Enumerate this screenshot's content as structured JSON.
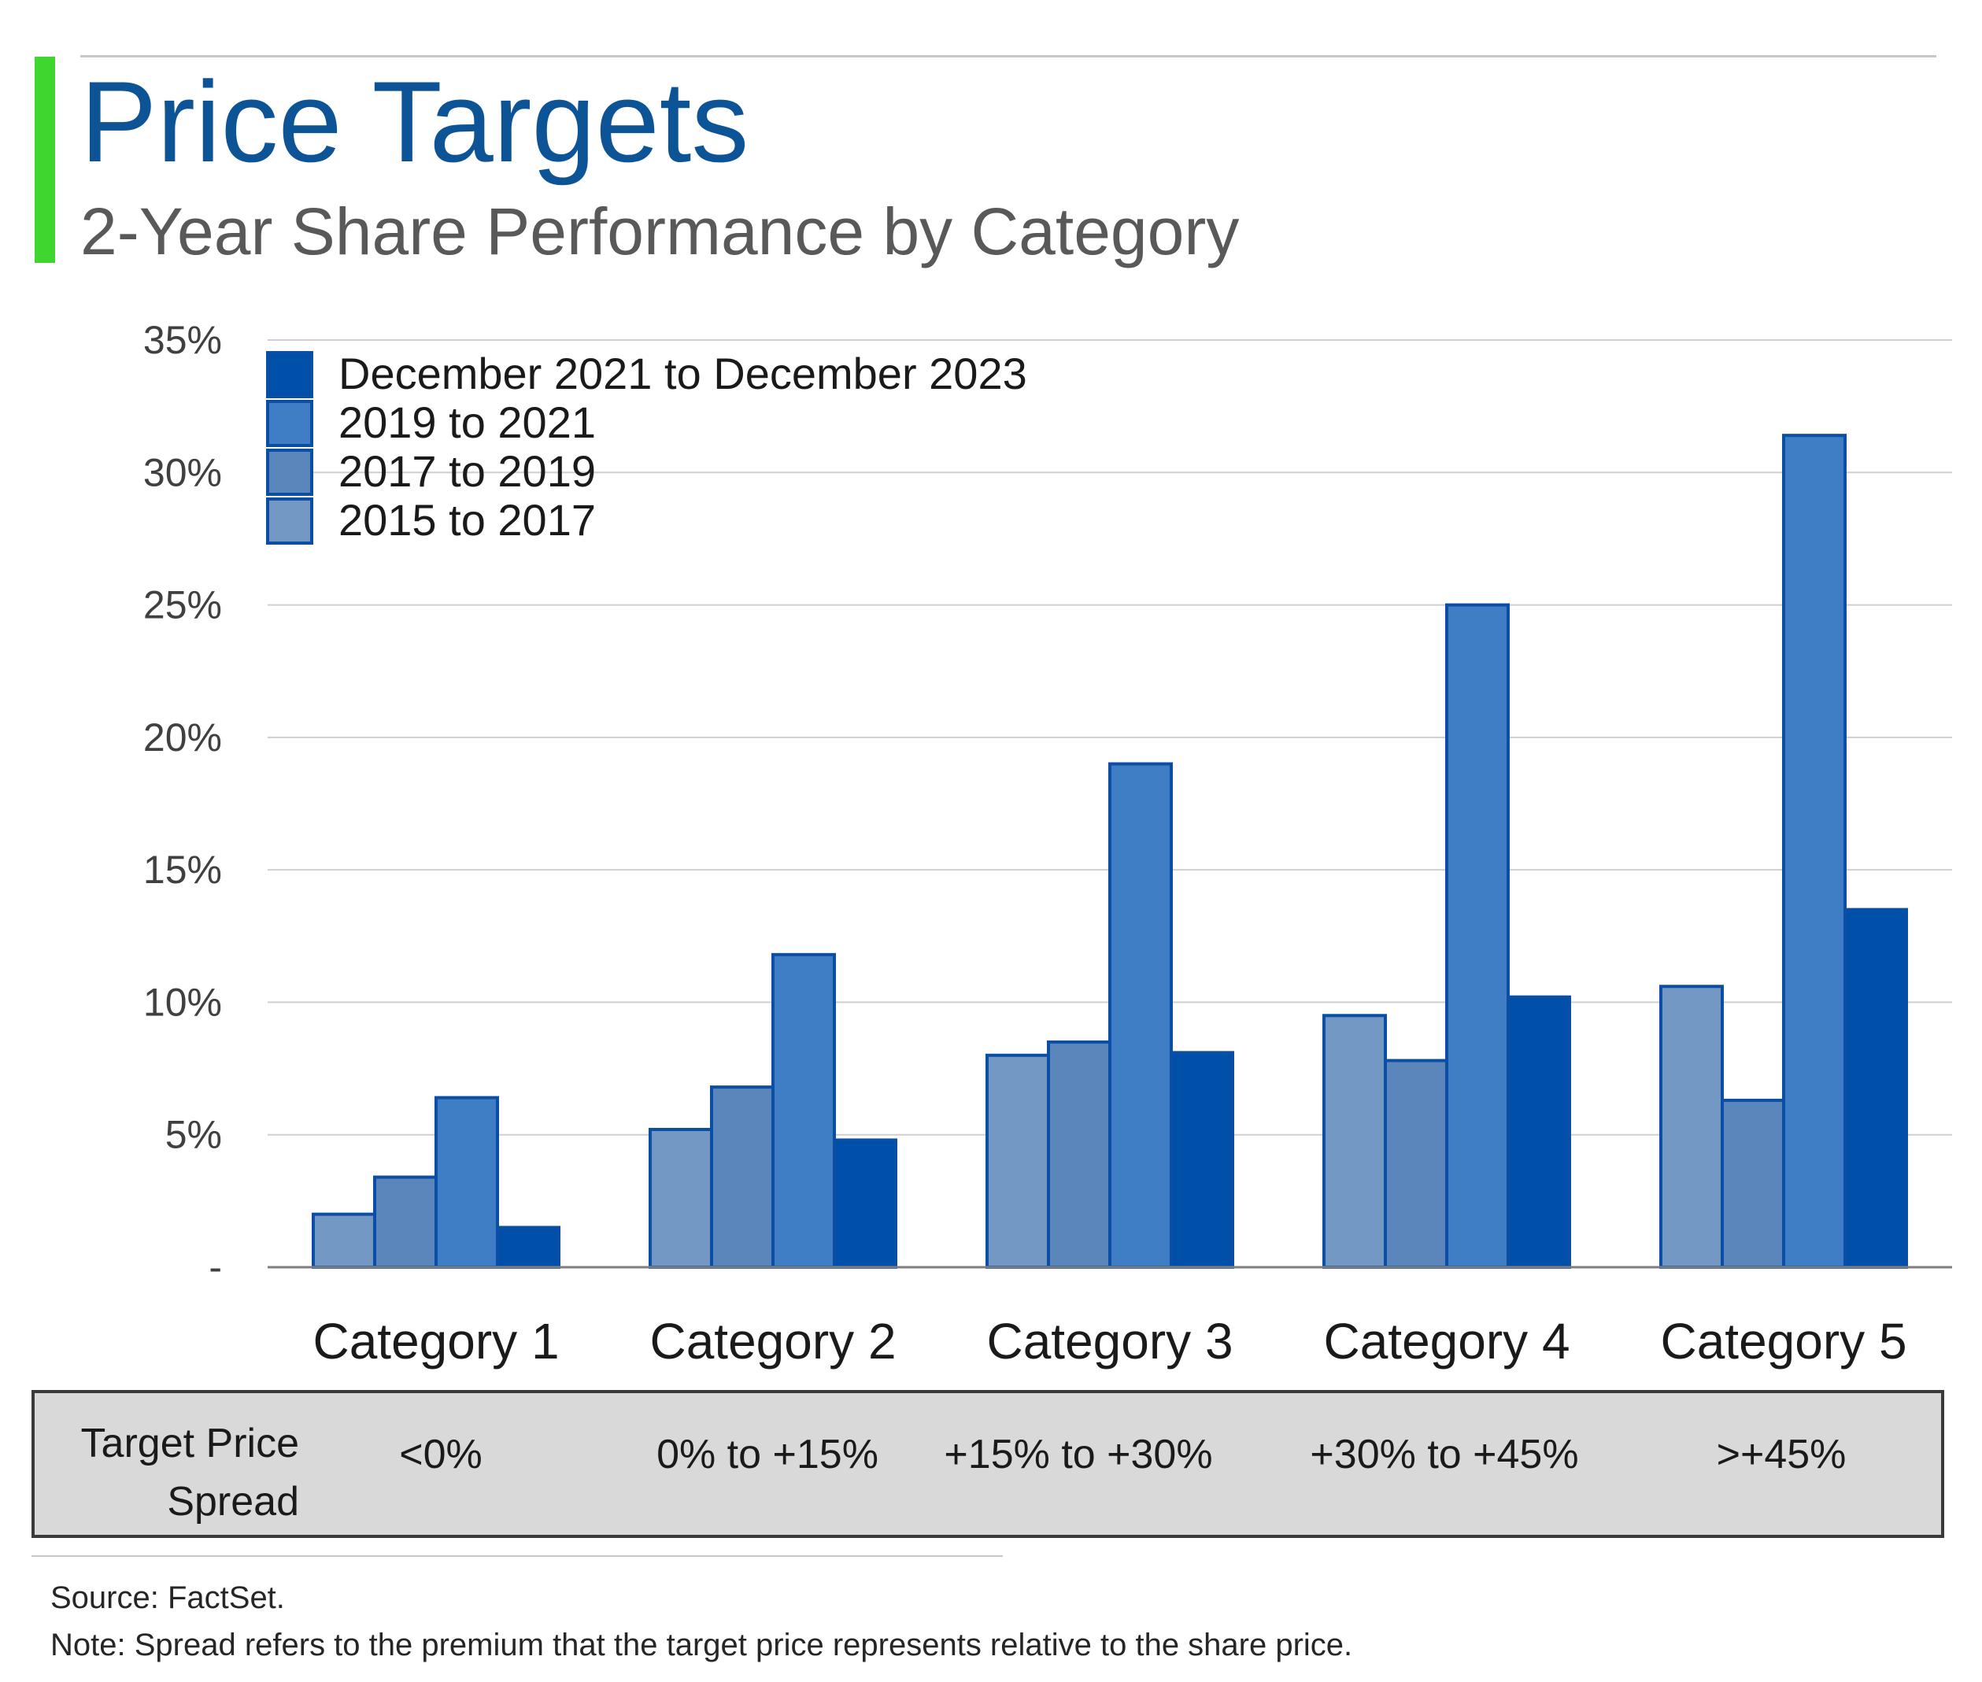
{
  "header": {
    "title": "Price Targets",
    "subtitle": "2-Year Share Performance by Category"
  },
  "colors": {
    "accent": "#3ed62f",
    "title": "#0d5496",
    "grid": "#cfcfcf",
    "bar_outline": "#0b4ea6"
  },
  "chart_data": {
    "type": "bar",
    "categories": [
      "Category 1",
      "Category 2",
      "Category 3",
      "Category 4",
      "Category 5"
    ],
    "y_ticks": [
      "-",
      "5%",
      "10%",
      "15%",
      "20%",
      "25%",
      "30%",
      "35%"
    ],
    "ylim": [
      0,
      35
    ],
    "grid": true,
    "legend_position": "top-left",
    "series": [
      {
        "name": "2015 to 2017",
        "color": "#7398c4",
        "values": [
          2.0,
          5.2,
          8.0,
          9.5,
          10.6
        ]
      },
      {
        "name": "2017 to 2019",
        "color": "#5a86bc",
        "values": [
          3.4,
          6.8,
          8.5,
          7.8,
          6.3
        ]
      },
      {
        "name": "2019 to 2021",
        "color": "#3f7ec4",
        "values": [
          6.4,
          11.8,
          19.0,
          25.0,
          31.4
        ]
      },
      {
        "name": "December 2021 to December 2023",
        "color": "#0050aa",
        "values": [
          1.5,
          4.8,
          8.1,
          10.2,
          13.5
        ]
      }
    ],
    "legend_order": [
      "December 2021 to December 2023",
      "2019 to 2021",
      "2017 to 2019",
      "2015 to 2017"
    ]
  },
  "spread_table": {
    "label_line1": "Target Price",
    "label_line2": "Spread",
    "values": [
      "<0%",
      "0% to +15%",
      "+15% to +30%",
      "+30% to +45%",
      ">+45%"
    ]
  },
  "footer": {
    "source": "Source: FactSet.",
    "note": "Note: Spread refers to the premium that the target price represents relative to the share price."
  }
}
